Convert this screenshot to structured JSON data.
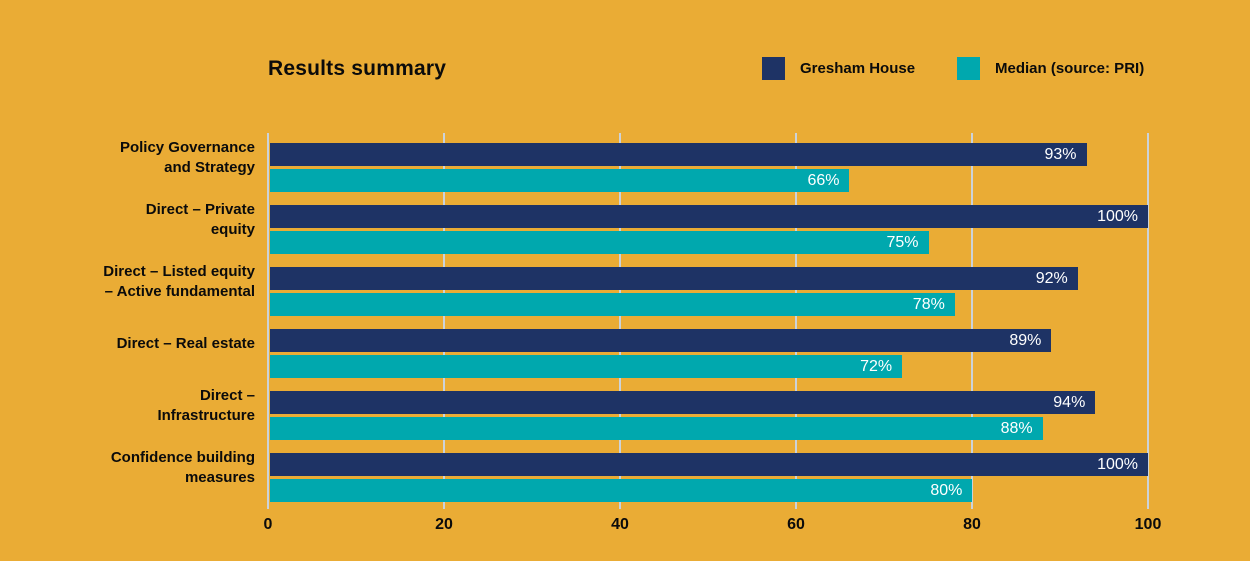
{
  "page": {
    "background_color": "#EAAC35"
  },
  "header": {
    "title": "Results summary"
  },
  "legend": {
    "items": [
      {
        "label": "Gresham House",
        "color": "#1E3365"
      },
      {
        "label": "Median (source: PRI)",
        "color": "#00A8AE"
      }
    ]
  },
  "chart_data": {
    "type": "bar",
    "orientation": "horizontal",
    "title": "Results summary",
    "categories": [
      "Policy Governance and Strategy",
      "Direct – Private equity",
      "Direct – Listed equity – Active fundamental",
      "Direct – Real estate",
      "Direct – Infrastructure",
      "Confidence building measures"
    ],
    "category_label_lines": [
      [
        "Policy Governance",
        "and Strategy"
      ],
      [
        "Direct – Private",
        "equity"
      ],
      [
        "Direct – Listed equity",
        "– Active fundamental"
      ],
      [
        "Direct – Real estate"
      ],
      [
        "Direct –",
        "Infrastructure"
      ],
      [
        "Confidence building",
        "measures"
      ]
    ],
    "series": [
      {
        "name": "Gresham House",
        "color": "#1E3365",
        "values": [
          93,
          100,
          92,
          89,
          94,
          100
        ],
        "value_labels": [
          "93%",
          "100%",
          "92%",
          "89%",
          "94%",
          "100%"
        ]
      },
      {
        "name": "Median (source: PRI)",
        "color": "#00A8AE",
        "values": [
          66,
          75,
          78,
          72,
          88,
          80
        ],
        "value_labels": [
          "66%",
          "75%",
          "78%",
          "72%",
          "88%",
          "80%"
        ]
      }
    ],
    "xlabel": "",
    "ylabel": "",
    "xlim": [
      0,
      100
    ],
    "x_ticks": [
      0,
      20,
      40,
      60,
      80,
      100
    ],
    "x_tick_labels": [
      "0",
      "20",
      "40",
      "60",
      "80",
      "100"
    ],
    "grid": "vertical",
    "gridline_color": "#CCD3D9",
    "value_label_color": "#FFFFFF",
    "text_color": "#0B0B0B",
    "legend_position": "top-right"
  }
}
